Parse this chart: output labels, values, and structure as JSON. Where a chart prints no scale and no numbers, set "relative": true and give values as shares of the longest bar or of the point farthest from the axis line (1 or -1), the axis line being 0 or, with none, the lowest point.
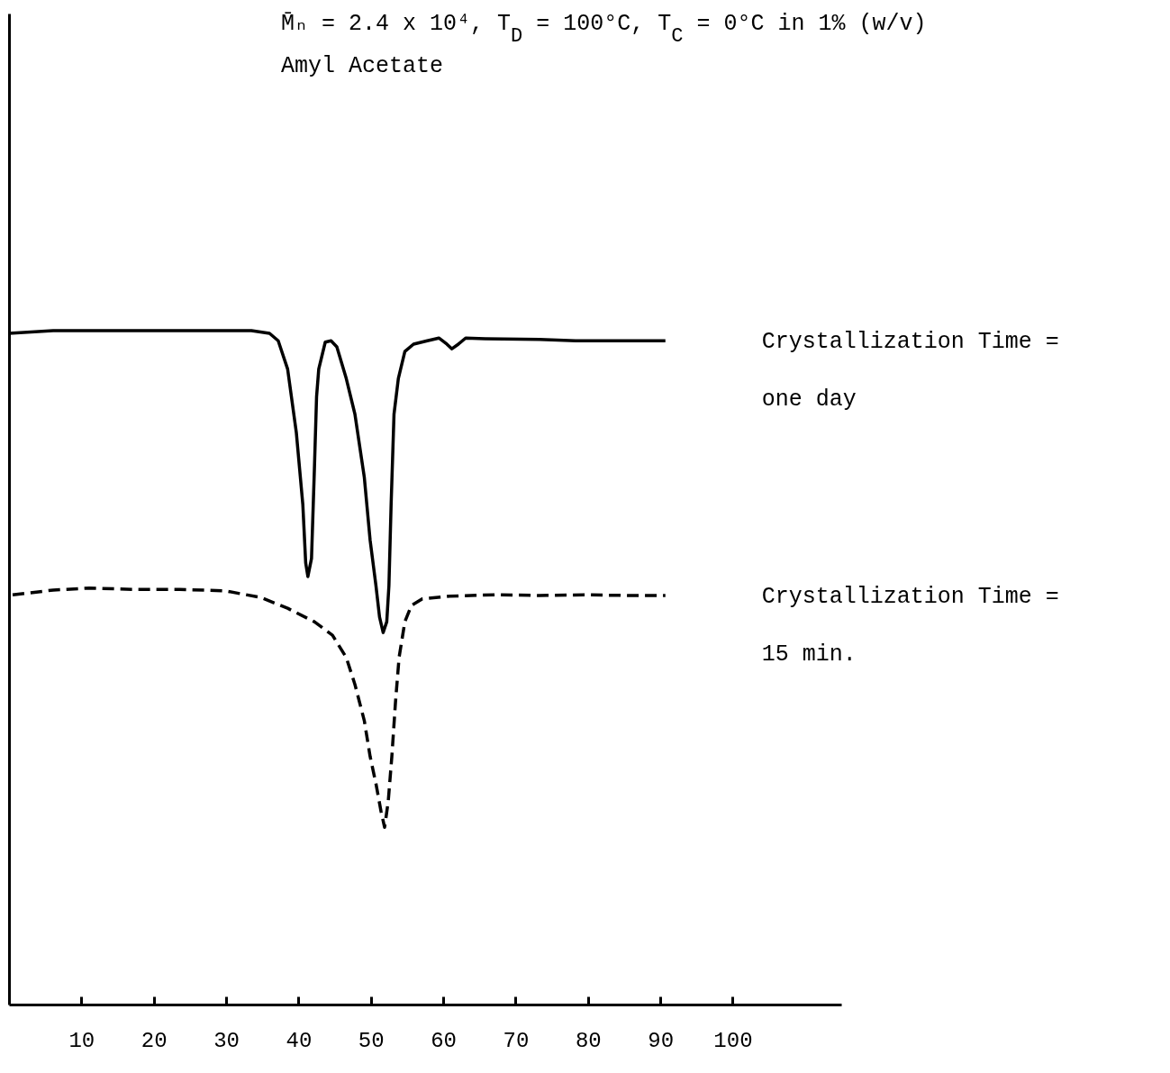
{
  "chart_data": {
    "type": "line",
    "title": "M̄ₙ = 2.4 x 10⁴, T$_{D}$ = 100°C, T$_{C}$ = 0°C in 1% (w/v)",
    "subtitle": "Amyl Acetate",
    "relative": true,
    "xlim": [
      0,
      115
    ],
    "xticks": [
      10,
      20,
      30,
      40,
      50,
      60,
      70,
      80,
      90,
      100
    ],
    "series": [
      {
        "name": "Crystallization Time =\none day",
        "color": "#000000",
        "line_style": "solid",
        "x": [
          0,
          6.1,
          11.1,
          23.6,
          33.5,
          36.0,
          37.2,
          38.5,
          39.7,
          40.6,
          41.0,
          41.3,
          41.8,
          42.2,
          42.5,
          42.8,
          43.7,
          44.5,
          45.3,
          46.6,
          47.8,
          49.1,
          49.9,
          50.7,
          51.2,
          51.7,
          52.2,
          52.5,
          52.8,
          53.2,
          53.8,
          54.7,
          55.9,
          57.8,
          59.4,
          60.5,
          61.2,
          62.1,
          63.1,
          65.8,
          73.3,
          78.3,
          85.8,
          90.7
        ],
        "values": [
          0.996,
          1.0,
          1.0,
          1.0,
          1.0,
          0.996,
          0.985,
          0.943,
          0.849,
          0.742,
          0.655,
          0.635,
          0.662,
          0.795,
          0.902,
          0.943,
          0.983,
          0.985,
          0.976,
          0.929,
          0.876,
          0.782,
          0.689,
          0.622,
          0.575,
          0.552,
          0.568,
          0.622,
          0.742,
          0.876,
          0.929,
          0.969,
          0.98,
          0.985,
          0.989,
          0.98,
          0.973,
          0.98,
          0.989,
          0.988,
          0.987,
          0.985,
          0.985,
          0.985
        ]
      },
      {
        "name": "Crystallization Time =\n15 min.",
        "color": "#000000",
        "line_style": "dashed",
        "x": [
          0.5,
          6.1,
          11.1,
          17.3,
          23.6,
          29.8,
          34.8,
          38.5,
          42.2,
          44.7,
          46.6,
          47.8,
          49.1,
          49.9,
          50.7,
          51.4,
          51.9,
          52.4,
          52.9,
          53.4,
          53.9,
          54.7,
          55.6,
          57.1,
          60.9,
          67.1,
          73.3,
          79.5,
          85.7,
          90.7
        ],
        "values": [
          0.608,
          0.615,
          0.618,
          0.616,
          0.616,
          0.614,
          0.604,
          0.588,
          0.568,
          0.548,
          0.515,
          0.475,
          0.421,
          0.368,
          0.328,
          0.287,
          0.263,
          0.301,
          0.368,
          0.448,
          0.515,
          0.568,
          0.592,
          0.602,
          0.606,
          0.608,
          0.607,
          0.608,
          0.607,
          0.607
        ]
      }
    ]
  }
}
